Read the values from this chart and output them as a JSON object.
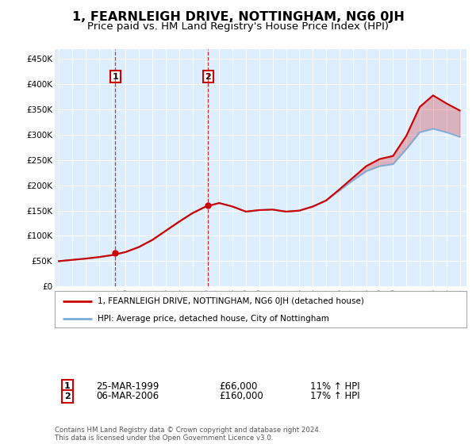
{
  "title": "1, FEARNLEIGH DRIVE, NOTTINGHAM, NG6 0JH",
  "subtitle": "Price paid vs. HM Land Registry's House Price Index (HPI)",
  "ylim": [
    0,
    470000
  ],
  "yticks": [
    0,
    50000,
    100000,
    150000,
    200000,
    250000,
    300000,
    350000,
    400000,
    450000
  ],
  "ytick_labels": [
    "£0",
    "£50K",
    "£100K",
    "£150K",
    "£200K",
    "£250K",
    "£300K",
    "£350K",
    "£400K",
    "£450K"
  ],
  "background_color": "#ffffff",
  "plot_bg_color": "#ddeeff",
  "grid_color": "#ffffff",
  "legend_entry1": "1, FEARNLEIGH DRIVE, NOTTINGHAM, NG6 0JH (detached house)",
  "legend_entry2": "HPI: Average price, detached house, City of Nottingham",
  "sale1_date": "25-MAR-1999",
  "sale1_price": 66000,
  "sale1_hpi": "11% ↑ HPI",
  "sale1_label": "1",
  "sale1_year": 1999.23,
  "sale2_date": "06-MAR-2006",
  "sale2_price": 160000,
  "sale2_hpi": "17% ↑ HPI",
  "sale2_label": "2",
  "sale2_year": 2006.18,
  "footer": "Contains HM Land Registry data © Crown copyright and database right 2024.\nThis data is licensed under the Open Government Licence v3.0.",
  "hpi_color": "#7aaed6",
  "price_color": "#cc0000",
  "sale_marker_color": "#cc0000",
  "dashed_line_color": "#cc0000",
  "years": [
    1995,
    1996,
    1997,
    1998,
    1999,
    2000,
    2001,
    2002,
    2003,
    2004,
    2005,
    2006,
    2007,
    2008,
    2009,
    2010,
    2011,
    2012,
    2013,
    2014,
    2015,
    2016,
    2017,
    2018,
    2019,
    2020,
    2021,
    2022,
    2023,
    2024,
    2025
  ],
  "hpi_values": [
    50000,
    52500,
    55000,
    58000,
    62000,
    68000,
    78000,
    92000,
    110000,
    128000,
    145000,
    158000,
    165000,
    158000,
    148000,
    151000,
    152000,
    148000,
    150000,
    158000,
    170000,
    190000,
    210000,
    228000,
    238000,
    242000,
    272000,
    305000,
    312000,
    305000,
    296000
  ],
  "price_values": [
    50000,
    52500,
    55000,
    58000,
    62000,
    68000,
    78000,
    92000,
    110000,
    128000,
    145000,
    158000,
    165000,
    158000,
    148000,
    151000,
    152000,
    148000,
    150000,
    158000,
    170000,
    192000,
    215000,
    238000,
    252000,
    258000,
    298000,
    355000,
    378000,
    362000,
    348000
  ]
}
